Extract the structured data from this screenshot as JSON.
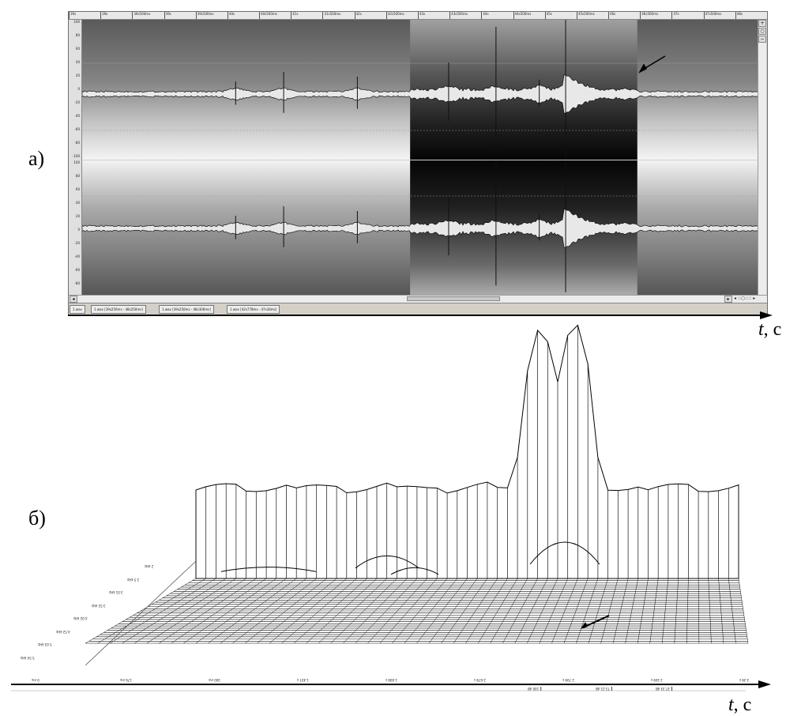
{
  "labels": {
    "panel_a": "а)",
    "panel_b": "б)",
    "axis_a_var": "t",
    "axis_a_unit": ", с",
    "axis_b_var": "t",
    "axis_b_unit": ", с"
  },
  "editor": {
    "time_ruler": [
      "39s",
      "39s",
      "39s500ms",
      "39s",
      "39s500ms",
      "40s",
      "40s500ms",
      "41s",
      "41s500ms",
      "42s",
      "42s500ms",
      "43s",
      "43s500ms",
      "44s",
      "44s500ms",
      "45s",
      "45s500ms",
      "46s",
      "46s500ms",
      "47s",
      "47s500ms",
      "48s"
    ],
    "y_scale": [
      "100",
      "80",
      "60",
      "40",
      "20",
      "0",
      "-20",
      "-40",
      "-60",
      "-80",
      "-100"
    ],
    "tabs": [
      "1.wav",
      "1.wav [39s250ms - 48s250ms]",
      "1.wav [39s250ms - 48s300ms]",
      "1.wav [42s778ms - 47s34ms]"
    ],
    "selection_percent": [
      48.5,
      82.1
    ],
    "spike_positions_percent": [
      22.7,
      29.8,
      40.7,
      54.2,
      61.2,
      67.6,
      71.5
    ]
  },
  "plot3d": {
    "x_ticks": [
      "0 ms",
      "176 ms",
      "300 ms",
      "1.407 s",
      "1.608 s",
      "2.678 s",
      "2.709 s",
      "3.169 s",
      "3.39 s"
    ],
    "z_ticks": [
      "2 kHz",
      "2.5 kHz",
      "3.01 kHz",
      "3.52 kHz",
      "4.02 kHz",
      "4.52 kHz",
      "5.03 kHz",
      "5.54 kHz"
    ],
    "legend": [
      "100 dB",
      "73.21 dB",
      "37.33 dB"
    ]
  }
}
